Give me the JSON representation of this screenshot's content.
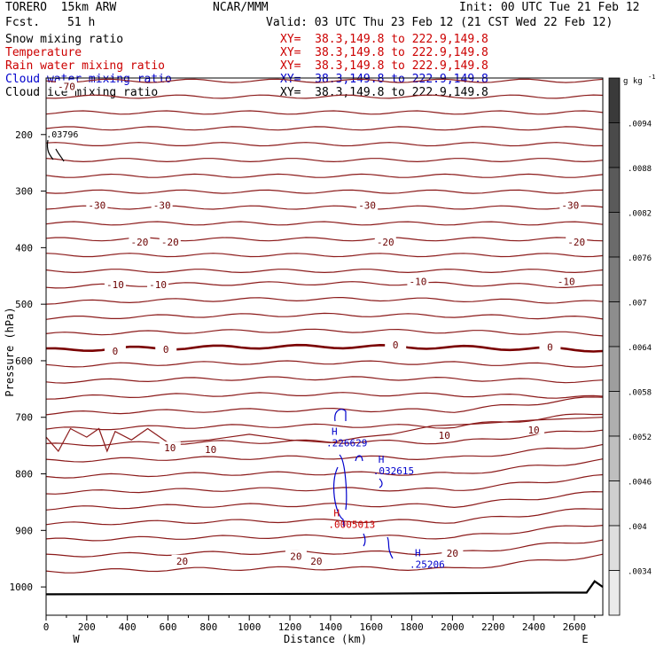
{
  "header": {
    "model": "TORERO  15km ARW",
    "org": "NCAR/MMM",
    "init": "Init: 00 UTC Tue 21 Feb 12",
    "fcst_label": "Fcst.",
    "fcst_value": "51 h",
    "valid": "Valid: 03 UTC Thu 23 Feb 12 (21 CST Wed 22 Feb 12)"
  },
  "fields": [
    {
      "name": "Snow mixing ratio",
      "xy": "XY=  38.3,149.8 to 222.9,149.8",
      "color": "#000000"
    },
    {
      "name": "Temperature",
      "xy": "XY=  38.3,149.8 to 222.9,149.8",
      "color": "#cc0000"
    },
    {
      "name": "Rain water mixing ratio",
      "xy": "XY=  38.3,149.8 to 222.9,149.8",
      "color": "#cc0000"
    },
    {
      "name": "Cloud water mixing ratio",
      "xy": "XY=  38.3,149.8 to 222.9,149.8",
      "color": "#0000cc"
    },
    {
      "name": "Cloud ice mixing ratio",
      "xy": "XY=  38.3,149.8 to 222.9,149.8",
      "color": "#000000"
    }
  ],
  "chart_data": {
    "type": "contour",
    "xlabel": "Distance (km)",
    "ylabel": "Pressure (hPa)",
    "xlim": [
      0,
      2740
    ],
    "ylim": [
      1050,
      100
    ],
    "x_ticks": [
      0,
      200,
      400,
      600,
      800,
      1000,
      1200,
      1400,
      1600,
      1800,
      2000,
      2200,
      2400,
      2600
    ],
    "y_ticks": [
      200,
      300,
      400,
      500,
      600,
      700,
      800,
      900,
      1000
    ],
    "left_end_label": "W",
    "right_end_label": "E",
    "temperature_labels": [
      {
        "text": "-70",
        "x": 100,
        "p": 115
      },
      {
        "text": "-30",
        "x": 250,
        "p": 325
      },
      {
        "text": "-30",
        "x": 570,
        "p": 325
      },
      {
        "text": "-30",
        "x": 1580,
        "p": 325
      },
      {
        "text": "-30",
        "x": 2580,
        "p": 325
      },
      {
        "text": "-20",
        "x": 460,
        "p": 390
      },
      {
        "text": "-20",
        "x": 610,
        "p": 390
      },
      {
        "text": "-20",
        "x": 1670,
        "p": 390
      },
      {
        "text": "-20",
        "x": 2610,
        "p": 390
      },
      {
        "text": "-10",
        "x": 340,
        "p": 465
      },
      {
        "text": "-10",
        "x": 550,
        "p": 465
      },
      {
        "text": "-10",
        "x": 1830,
        "p": 460
      },
      {
        "text": "-10",
        "x": 2560,
        "p": 460
      },
      {
        "text": "0",
        "x": 340,
        "p": 583
      },
      {
        "text": "0",
        "x": 590,
        "p": 580
      },
      {
        "text": "0",
        "x": 1720,
        "p": 572
      },
      {
        "text": "0",
        "x": 2480,
        "p": 576
      },
      {
        "text": "10",
        "x": 610,
        "p": 754
      },
      {
        "text": "10",
        "x": 810,
        "p": 757
      },
      {
        "text": "10",
        "x": 1960,
        "p": 732
      },
      {
        "text": "10",
        "x": 2400,
        "p": 722
      },
      {
        "text": "20",
        "x": 670,
        "p": 954
      },
      {
        "text": "20",
        "x": 1230,
        "p": 946
      },
      {
        "text": "20",
        "x": 1330,
        "p": 954
      },
      {
        "text": "20",
        "x": 2000,
        "p": 940
      }
    ],
    "extrema": [
      {
        "mark": "H",
        "value": ".226629",
        "x": 1440,
        "p": 740,
        "color": "#0000cc"
      },
      {
        "mark": "H",
        "value": ".032615",
        "x": 1670,
        "p": 790,
        "color": "#0000cc"
      },
      {
        "mark": "H",
        "value": ".0005013",
        "x": 1450,
        "p": 885,
        "color": "#cc0000"
      },
      {
        "mark": "H",
        "value": ".25206",
        "x": 1850,
        "p": 955,
        "color": "#0000cc"
      }
    ],
    "upper_note": {
      "text": ".03796",
      "x": 80,
      "p": 205
    },
    "colorbar": {
      "unit": "g kg",
      "unit_sup": "-1",
      "labels": [
        ".0094",
        ".0088",
        ".0082",
        ".0076",
        ".007",
        ".0064",
        ".0058",
        ".0052",
        ".0046",
        ".004",
        ".0034"
      ],
      "colors": [
        "#3a3a3a",
        "#4a4a4a",
        "#5a5a5a",
        "#6b6b6b",
        "#7c7c7c",
        "#8d8d8d",
        "#9e9e9e",
        "#afafaf",
        "#bfbfbf",
        "#cfcfcf",
        "#dedede",
        "#ebebeb"
      ]
    }
  }
}
